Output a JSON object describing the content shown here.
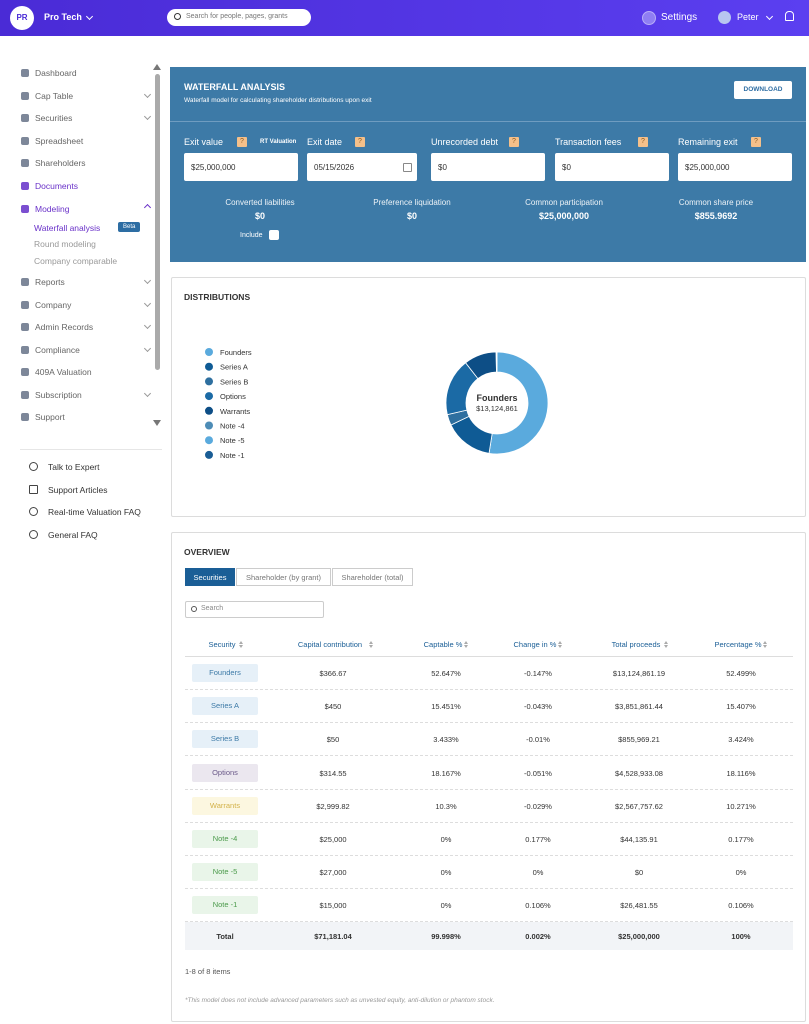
{
  "header": {
    "avatar": "PR",
    "company": "Pro Tech",
    "search": "Search for people, pages, grants",
    "settings": "Settings",
    "user": "Peter"
  },
  "sidebar": {
    "items": [
      {
        "label": "Dashboard",
        "chevron": false
      },
      {
        "label": "Cap Table",
        "chevron": true
      },
      {
        "label": "Securities",
        "chevron": true
      },
      {
        "label": "Spreadsheet",
        "chevron": false
      },
      {
        "label": "Shareholders",
        "chevron": false
      },
      {
        "label": "Documents",
        "chevron": false,
        "active": true
      },
      {
        "label": "Modeling",
        "chevron": true,
        "active": true,
        "expanded": true
      },
      {
        "label": "Reports",
        "chevron": true
      },
      {
        "label": "Company",
        "chevron": true
      },
      {
        "label": "Admin Records",
        "chevron": true
      },
      {
        "label": "Compliance",
        "chevron": true
      },
      {
        "label": "409A Valuation",
        "chevron": false
      },
      {
        "label": "Subscription",
        "chevron": true
      },
      {
        "label": "Support",
        "chevron": false
      }
    ],
    "modeling_sub": [
      {
        "label": "Waterfall analysis",
        "badge": "Beta",
        "active": true
      },
      {
        "label": "Round modeling"
      },
      {
        "label": "Company comparable"
      }
    ],
    "help": [
      "Talk to Expert",
      "Support Articles",
      "Real-time Valuation FAQ",
      "General FAQ"
    ]
  },
  "waterfall": {
    "title": "WATERFALL ANALYSIS",
    "subtitle": "Waterfall model for calculating shareholder distributions upon exit",
    "download": "DOWNLOAD",
    "rt": "RT Valuation",
    "fields": [
      {
        "label": "Exit value",
        "help": "?",
        "value": "$25,000,000"
      },
      {
        "label": "Exit date",
        "help": "?",
        "value": "05/15/2026"
      },
      {
        "label": "Unrecorded debt",
        "help": "?",
        "value": "$0"
      },
      {
        "label": "Transaction fees",
        "help": "?",
        "value": "$0"
      },
      {
        "label": "Remaining exit",
        "help": "?",
        "value": "$25,000,000"
      }
    ],
    "summary": [
      {
        "label": "Converted liabilities",
        "value": "$0"
      },
      {
        "label": "Preference liquidation",
        "value": "$0"
      },
      {
        "label": "Common participation",
        "value": "$25,000,000"
      },
      {
        "label": "Common share price",
        "value": "$855.9692"
      }
    ],
    "include": "Include"
  },
  "distributions": {
    "title": "DISTRIBUTIONS"
  },
  "chart_data": {
    "type": "pie",
    "donut": true,
    "categories": [
      "Founders",
      "Series A",
      "Series B",
      "Options",
      "Warrants",
      "Note -4",
      "Note -5",
      "Note -1"
    ],
    "values": [
      52.499,
      15.407,
      3.424,
      18.116,
      10.271,
      0.177,
      0,
      0.106
    ],
    "colors": [
      "#5aaadd",
      "#0f5b95",
      "#2e6f9f",
      "#1b6aa5",
      "#0d4e86",
      "#4d8cb6",
      "#5aaadd",
      "#1a5d95"
    ],
    "center_label": "Founders",
    "center_value": "$13,124,861"
  },
  "overview": {
    "title": "OVERVIEW",
    "tabs": [
      "Securities",
      "Shareholder (by grant)",
      "Shareholder (total)"
    ],
    "search": "Search",
    "columns": [
      "Security",
      "Capital contribution",
      "Captable %",
      "Change in %",
      "Total proceeds",
      "Percentage %"
    ],
    "rows": [
      [
        "Founders",
        "$366.67",
        "52.647%",
        "-0.147%",
        "$13,124,861.19",
        "52.499%"
      ],
      [
        "Series A",
        "$450",
        "15.451%",
        "-0.043%",
        "$3,851,861.44",
        "15.407%"
      ],
      [
        "Series B",
        "$50",
        "3.433%",
        "-0.01%",
        "$855,969.21",
        "3.424%"
      ],
      [
        "Options",
        "$314.55",
        "18.167%",
        "-0.051%",
        "$4,528,933.08",
        "18.116%"
      ],
      [
        "Warrants",
        "$2,999.82",
        "10.3%",
        "-0.029%",
        "$2,567,757.62",
        "10.271%"
      ],
      [
        "Note -4",
        "$25,000",
        "0%",
        "0.177%",
        "$44,135.91",
        "0.177%"
      ],
      [
        "Note -5",
        "$27,000",
        "0%",
        "0%",
        "$0",
        "0%"
      ],
      [
        "Note -1",
        "$15,000",
        "0%",
        "0.106%",
        "$26,481.55",
        "0.106%"
      ]
    ],
    "total": [
      "Total",
      "$71,181.04",
      "99.998%",
      "0.002%",
      "$25,000,000",
      "100%"
    ],
    "pagination": "1-8 of 8 items",
    "footnote": "*This model does not include advanced parameters such as unvested equity, anti-dilution or phantom stock."
  }
}
